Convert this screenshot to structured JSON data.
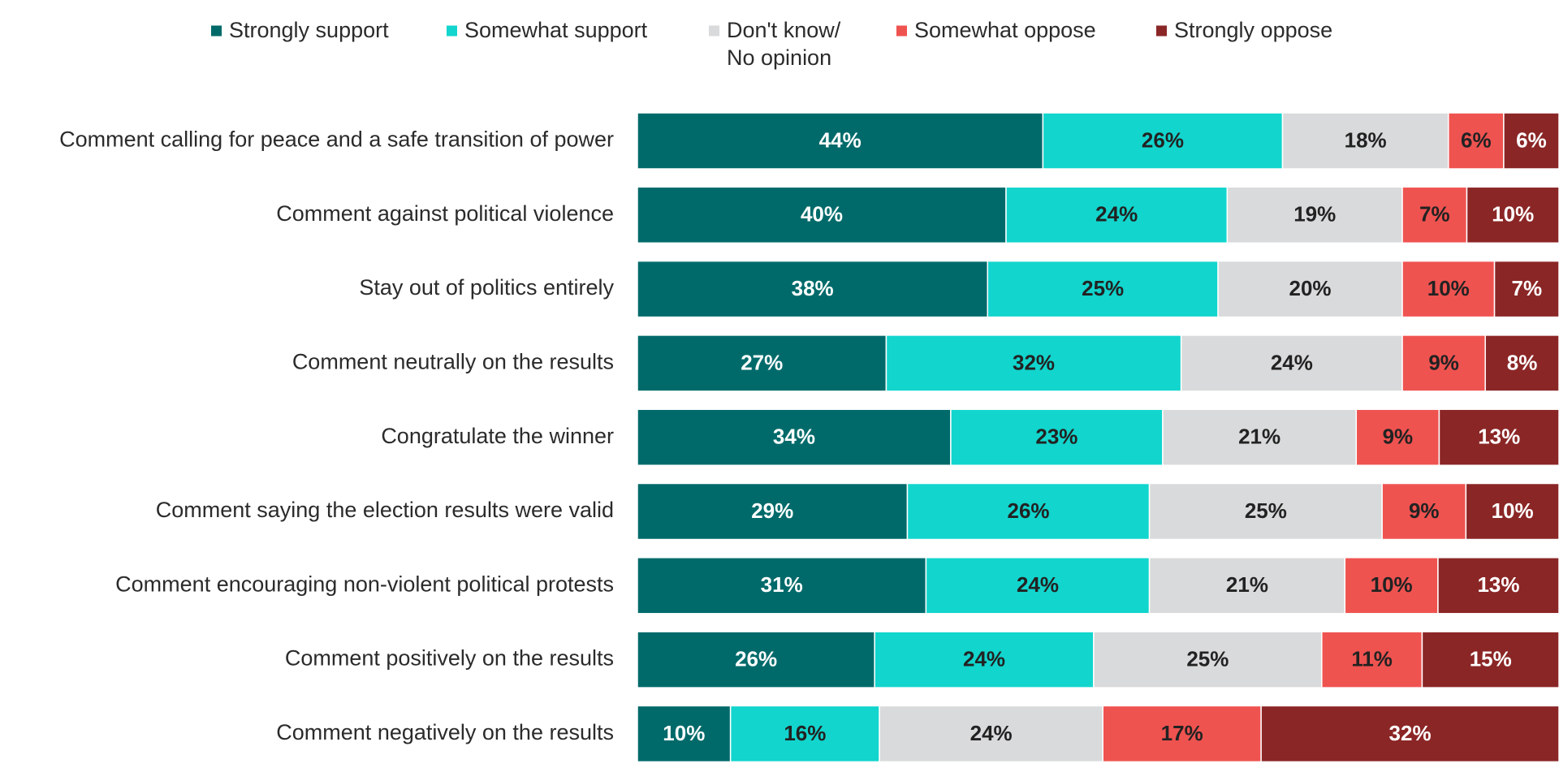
{
  "chart_data": {
    "type": "bar",
    "orientation": "horizontal",
    "stacked": true,
    "normalized": true,
    "legend_placement": "top",
    "grid": false,
    "value_suffix": "%",
    "categories": [
      "Comment calling for peace and a safe transition of power",
      "Comment against political violence",
      "Stay out of politics entirely",
      "Comment neutrally on the results",
      "Congratulate the winner",
      "Comment saying the election results were valid",
      "Comment encouraging non-violent political protests",
      "Comment positively on the results",
      "Comment negatively on the results"
    ],
    "series": [
      {
        "name": "Strongly support",
        "legend_lines": [
          "Strongly support"
        ],
        "color": "#006a6a",
        "label_color": "#ffffff",
        "values": [
          44,
          40,
          38,
          27,
          34,
          29,
          31,
          26,
          10
        ]
      },
      {
        "name": "Somewhat support",
        "legend_lines": [
          "Somewhat support"
        ],
        "color": "#12d5cd",
        "label_color": "#222222",
        "values": [
          26,
          24,
          25,
          32,
          23,
          26,
          24,
          24,
          16
        ]
      },
      {
        "name": "Don't know/ No opinion",
        "legend_lines": [
          "Don't know/",
          "No opinion"
        ],
        "color": "#d9dadb",
        "label_color": "#222222",
        "values": [
          18,
          19,
          20,
          24,
          21,
          25,
          21,
          25,
          24
        ]
      },
      {
        "name": "Somewhat oppose",
        "legend_lines": [
          "Somewhat oppose"
        ],
        "color": "#ef5350",
        "label_color": "#222222",
        "values": [
          6,
          7,
          10,
          9,
          9,
          9,
          10,
          11,
          17
        ]
      },
      {
        "name": "Strongly oppose",
        "legend_lines": [
          "Strongly oppose"
        ],
        "color": "#8b2626",
        "label_color": "#ffffff",
        "values": [
          6,
          10,
          7,
          8,
          13,
          10,
          13,
          15,
          32
        ]
      }
    ]
  }
}
